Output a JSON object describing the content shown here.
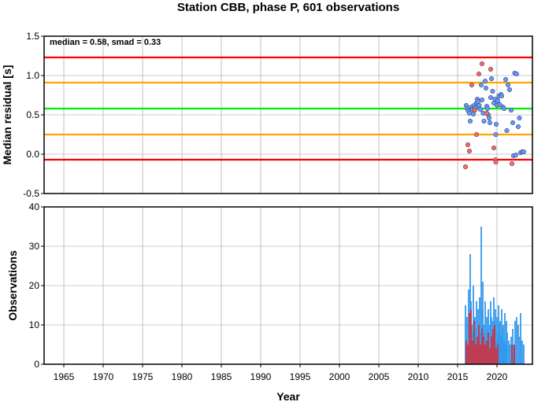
{
  "chart_data": [
    {
      "type": "scatter",
      "title": "Station CBB, phase P, 601 observations",
      "ylabel": "Median residual [s]",
      "annotation": "median = 0.58, smad = 0.33",
      "xlim": [
        1962.5,
        2024.5
      ],
      "ylim": [
        -0.5,
        1.5
      ],
      "yticks": [
        "-0.5",
        "0.0",
        "0.5",
        "1.0",
        "1.5"
      ],
      "grid": true,
      "reference_lines": [
        {
          "y": 1.23,
          "color": "#ff0000"
        },
        {
          "y": 0.91,
          "color": "#ffa500"
        },
        {
          "y": 0.58,
          "color": "#00ee00"
        },
        {
          "y": 0.25,
          "color": "#ffa500"
        },
        {
          "y": -0.07,
          "color": "#ff0000"
        }
      ],
      "series": [
        {
          "color": "#6699ff",
          "points": [
            [
              2016.1,
              0.62
            ],
            [
              2016.2,
              0.58
            ],
            [
              2016.35,
              0.55
            ],
            [
              2016.5,
              0.52
            ],
            [
              2016.6,
              0.42
            ],
            [
              2016.75,
              0.6
            ],
            [
              2016.9,
              0.57
            ],
            [
              2017.0,
              0.51
            ],
            [
              2017.1,
              0.62
            ],
            [
              2017.25,
              0.59
            ],
            [
              2017.4,
              0.65
            ],
            [
              2017.5,
              0.7
            ],
            [
              2017.6,
              0.67
            ],
            [
              2017.75,
              0.62
            ],
            [
              2017.9,
              0.57
            ],
            [
              2018.0,
              0.88
            ],
            [
              2018.1,
              0.69
            ],
            [
              2018.25,
              0.52
            ],
            [
              2018.35,
              0.42
            ],
            [
              2018.5,
              0.93
            ],
            [
              2018.6,
              0.84
            ],
            [
              2018.7,
              0.61
            ],
            [
              2018.8,
              0.58
            ],
            [
              2018.9,
              0.5
            ],
            [
              2019.0,
              0.46
            ],
            [
              2019.1,
              0.4
            ],
            [
              2019.2,
              0.72
            ],
            [
              2019.3,
              0.96
            ],
            [
              2019.45,
              0.8
            ],
            [
              2019.6,
              0.65
            ],
            [
              2019.75,
              0.7
            ],
            [
              2019.85,
              0.25
            ],
            [
              2019.9,
              0.38
            ],
            [
              2020.0,
              0.62
            ],
            [
              2020.1,
              0.68
            ],
            [
              2020.25,
              0.74
            ],
            [
              2020.35,
              0.63
            ],
            [
              2020.5,
              0.76
            ],
            [
              2020.6,
              0.74
            ],
            [
              2020.75,
              0.6
            ],
            [
              2020.9,
              0.58
            ],
            [
              2021.1,
              0.95
            ],
            [
              2021.25,
              0.3
            ],
            [
              2021.4,
              0.88
            ],
            [
              2021.6,
              0.82
            ],
            [
              2021.8,
              0.56
            ],
            [
              2022.0,
              0.4
            ],
            [
              2022.1,
              -0.02
            ],
            [
              2022.25,
              1.03
            ],
            [
              2022.4,
              -0.01
            ],
            [
              2022.5,
              1.02
            ],
            [
              2022.7,
              0.35
            ],
            [
              2022.85,
              0.46
            ],
            [
              2023.0,
              0.02
            ],
            [
              2023.2,
              0.03
            ],
            [
              2023.4,
              0.03
            ]
          ]
        },
        {
          "color": "#ff6666",
          "points": [
            [
              2016.0,
              -0.16
            ],
            [
              2016.3,
              0.12
            ],
            [
              2016.5,
              0.04
            ],
            [
              2016.8,
              0.88
            ],
            [
              2017.2,
              0.56
            ],
            [
              2017.4,
              0.25
            ],
            [
              2017.7,
              1.02
            ],
            [
              2018.1,
              1.15
            ],
            [
              2018.7,
              0.52
            ],
            [
              2019.2,
              1.08
            ],
            [
              2019.6,
              0.08
            ],
            [
              2019.8,
              -0.07
            ],
            [
              2019.85,
              -0.1
            ],
            [
              2021.9,
              -0.12
            ]
          ]
        }
      ]
    },
    {
      "type": "bar",
      "xlabel": "Year",
      "ylabel": "Observations",
      "xlim": [
        1962.5,
        2024.5
      ],
      "ylim": [
        0,
        40
      ],
      "xticks": [
        "1965",
        "1970",
        "1975",
        "1980",
        "1985",
        "1990",
        "1995",
        "2000",
        "2005",
        "2010",
        "2015",
        "2020"
      ],
      "yticks": [
        "0",
        "10",
        "20",
        "30",
        "40"
      ],
      "grid": true,
      "series": [
        {
          "color": "#3399ee",
          "bars": [
            [
              2016.0,
              15
            ],
            [
              2016.1,
              6
            ],
            [
              2016.2,
              12
            ],
            [
              2016.3,
              4
            ],
            [
              2016.4,
              19
            ],
            [
              2016.5,
              5
            ],
            [
              2016.6,
              28
            ],
            [
              2016.7,
              16
            ],
            [
              2016.8,
              10
            ],
            [
              2016.9,
              8
            ],
            [
              2017.0,
              20
            ],
            [
              2017.1,
              7
            ],
            [
              2017.2,
              12
            ],
            [
              2017.3,
              9
            ],
            [
              2017.4,
              16
            ],
            [
              2017.5,
              6
            ],
            [
              2017.6,
              14
            ],
            [
              2017.7,
              10
            ],
            [
              2017.8,
              17
            ],
            [
              2017.9,
              8
            ],
            [
              2018.0,
              35
            ],
            [
              2018.1,
              14
            ],
            [
              2018.2,
              21
            ],
            [
              2018.3,
              10
            ],
            [
              2018.4,
              8
            ],
            [
              2018.5,
              16
            ],
            [
              2018.6,
              6
            ],
            [
              2018.7,
              12
            ],
            [
              2018.8,
              9
            ],
            [
              2018.9,
              14
            ],
            [
              2019.0,
              5
            ],
            [
              2019.1,
              10
            ],
            [
              2019.2,
              16
            ],
            [
              2019.3,
              12
            ],
            [
              2019.4,
              7
            ],
            [
              2019.5,
              11
            ],
            [
              2019.6,
              17
            ],
            [
              2019.7,
              9
            ],
            [
              2019.8,
              14
            ],
            [
              2019.9,
              6
            ],
            [
              2020.0,
              12
            ],
            [
              2020.1,
              8
            ],
            [
              2020.2,
              15
            ],
            [
              2020.3,
              10
            ],
            [
              2020.4,
              11
            ],
            [
              2020.5,
              7
            ],
            [
              2020.6,
              14
            ],
            [
              2020.7,
              9
            ],
            [
              2020.8,
              10
            ],
            [
              2020.9,
              6
            ],
            [
              2021.0,
              13
            ],
            [
              2021.1,
              5
            ],
            [
              2021.2,
              11
            ],
            [
              2021.3,
              8
            ],
            [
              2021.5,
              6
            ],
            [
              2021.6,
              5
            ],
            [
              2021.8,
              7
            ],
            [
              2022.0,
              9
            ],
            [
              2022.1,
              5
            ],
            [
              2022.3,
              11
            ],
            [
              2022.5,
              12
            ],
            [
              2022.7,
              10
            ],
            [
              2022.9,
              7
            ],
            [
              2023.0,
              13
            ],
            [
              2023.2,
              6
            ],
            [
              2023.4,
              5
            ]
          ]
        },
        {
          "color": "#cc3344",
          "bars": [
            [
              2016.1,
              6
            ],
            [
              2016.3,
              5
            ],
            [
              2016.5,
              13
            ],
            [
              2016.7,
              14
            ],
            [
              2016.9,
              6
            ],
            [
              2017.1,
              11
            ],
            [
              2017.3,
              5
            ],
            [
              2017.5,
              7
            ],
            [
              2017.7,
              10
            ],
            [
              2017.9,
              5
            ],
            [
              2018.1,
              9
            ],
            [
              2018.3,
              7
            ],
            [
              2018.5,
              5
            ],
            [
              2018.7,
              6
            ],
            [
              2018.9,
              8
            ],
            [
              2019.1,
              4
            ],
            [
              2019.3,
              7
            ],
            [
              2019.5,
              9
            ],
            [
              2019.7,
              10
            ],
            [
              2019.9,
              4
            ],
            [
              2020.1,
              5
            ],
            [
              2021.9,
              5
            ],
            [
              2022.2,
              5
            ]
          ]
        }
      ]
    }
  ]
}
